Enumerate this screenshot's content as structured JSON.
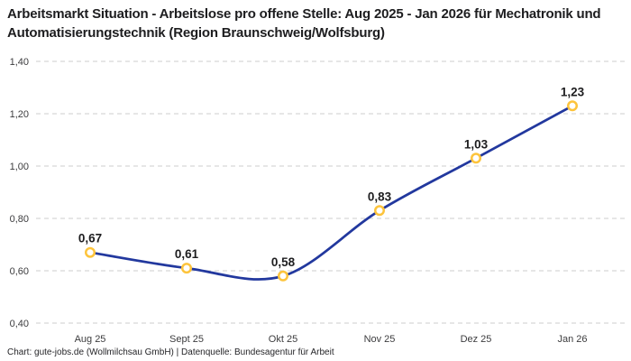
{
  "header": {
    "title": "Arbeitsmarkt Situation - Arbeitslose pro offene Stelle: Aug 2025 - Jan 2026 für Mechatronik und Automatisierungstechnik (Region Braunschweig/Wolfsburg)"
  },
  "chart_data": {
    "type": "line",
    "title": "Arbeitsmarkt Situation - Arbeitslose pro offene Stelle: Aug 2025 - Jan 2026 für Mechatronik und Automatisierungstechnik (Region Braunschweig/Wolfsburg)",
    "categories": [
      "Aug 25",
      "Sept 25",
      "Okt 25",
      "Nov 25",
      "Dez 25",
      "Jan 26"
    ],
    "values": [
      0.67,
      0.61,
      0.58,
      0.83,
      1.03,
      1.23
    ],
    "value_labels": [
      "0,67",
      "0,61",
      "0,58",
      "0,83",
      "1,03",
      "1,23"
    ],
    "xlabel": "",
    "ylabel": "",
    "ylim": [
      0.4,
      1.4
    ],
    "ytick_values": [
      0.4,
      0.6,
      0.8,
      1.0,
      1.2,
      1.4
    ],
    "ytick_labels": [
      "0,40",
      "0,60",
      "0,80",
      "1,00",
      "1,20",
      "1,40"
    ],
    "grid": "horizontal-dashed",
    "legend": "none",
    "curve": "smooth",
    "series_color": "#22389e",
    "marker_ring_color": "#fdc43c",
    "marker_fill_color": "#ffffff"
  },
  "footer": {
    "credit": "Chart: gute-jobs.de (Wollmilchsau GmbH) | Datenquelle: Bundesagentur für Arbeit"
  },
  "colors": {
    "background": "#ffffff",
    "title_text": "#1d1d1f",
    "tick_text": "#3c3c3e",
    "gridline": "#cccccc",
    "data_label_text": "#1d1d1f"
  }
}
